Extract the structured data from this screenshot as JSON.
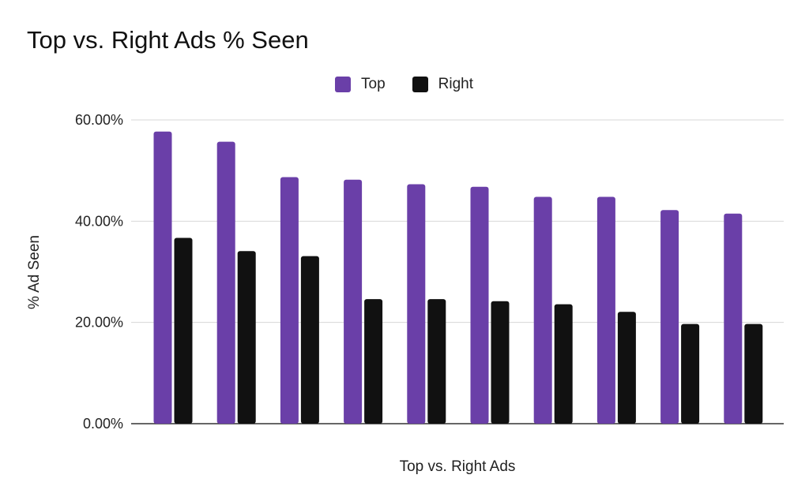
{
  "chart_data": {
    "type": "bar",
    "title": "Top vs. Right Ads % Seen",
    "xlabel": "Top vs. Right Ads",
    "ylabel": "% Ad Seen",
    "ylim": [
      0,
      0.6
    ],
    "yticks": [
      0,
      0.2,
      0.4,
      0.6
    ],
    "ytick_labels": [
      "0.00%",
      "20.00%",
      "40.00%",
      "60.00%"
    ],
    "grid": true,
    "legend_position": "top-center",
    "categories": [
      "",
      "",
      "",
      "",
      "",
      "",
      "",
      "",
      "",
      ""
    ],
    "series": [
      {
        "name": "Top",
        "color": "#6a3fa8",
        "values": [
          0.577,
          0.557,
          0.487,
          0.482,
          0.473,
          0.468,
          0.448,
          0.448,
          0.422,
          0.415
        ]
      },
      {
        "name": "Right",
        "color": "#111111",
        "values": [
          0.367,
          0.341,
          0.331,
          0.246,
          0.246,
          0.242,
          0.236,
          0.221,
          0.197,
          0.197
        ]
      }
    ]
  }
}
